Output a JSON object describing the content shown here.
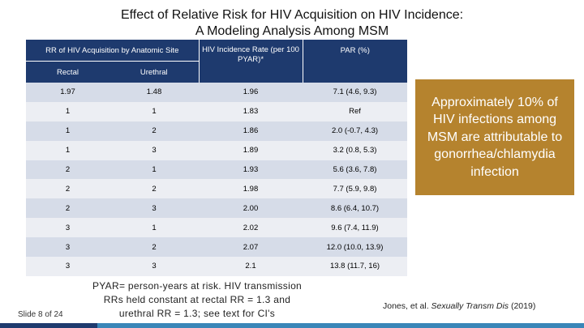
{
  "title": {
    "line1": "Effect of Relative Risk for HIV Acquisition on HIV Incidence:",
    "line2": "A Modeling Analysis Among MSM"
  },
  "table": {
    "group_header": "RR of HIV Acquisition by Anatomic Site",
    "col_rectal": "Rectal",
    "col_urethral": "Urethral",
    "col_incidence": "HIV Incidence Rate (per 100 PYAR)*",
    "col_par": "PAR (%)",
    "rows": [
      {
        "rectal": "1.97",
        "urethral": "1.48",
        "incidence": "1.96",
        "par": "7.1 (4.6, 9.3)"
      },
      {
        "rectal": "1",
        "urethral": "1",
        "incidence": "1.83",
        "par": "Ref"
      },
      {
        "rectal": "1",
        "urethral": "2",
        "incidence": "1.86",
        "par": "2.0 (-0.7, 4.3)"
      },
      {
        "rectal": "1",
        "urethral": "3",
        "incidence": "1.89",
        "par": "3.2 (0.8, 5.3)"
      },
      {
        "rectal": "2",
        "urethral": "1",
        "incidence": "1.93",
        "par": "5.6 (3.6, 7.8)"
      },
      {
        "rectal": "2",
        "urethral": "2",
        "incidence": "1.98",
        "par": "7.7 (5.9, 9.8)"
      },
      {
        "rectal": "2",
        "urethral": "3",
        "incidence": "2.00",
        "par": "8.6 (6.4, 10.7)"
      },
      {
        "rectal": "3",
        "urethral": "1",
        "incidence": "2.02",
        "par": "9.6 (7.4, 11.9)"
      },
      {
        "rectal": "3",
        "urethral": "2",
        "incidence": "2.07",
        "par": "12.0 (10.0, 13.9)"
      },
      {
        "rectal": "3",
        "urethral": "3",
        "incidence": "2.1",
        "par": "13.8 (11.7, 16)"
      }
    ]
  },
  "callout": "Approximately 10% of HIV infections among MSM are attributable to gonorrhea/chlamydia infection",
  "footnote": {
    "line1": "PYAR= person-years at risk. HIV transmission",
    "line2": "RRs held constant at rectal RR = 1.3 and",
    "line3": "urethral RR = 1.3; see text for CI's"
  },
  "slide_number": "Slide 8 of 24",
  "citation": {
    "authors": "Jones, et al. ",
    "journal": "Sexually Transm Dis",
    "year": " (2019)"
  },
  "colors": {
    "header_navy": "#1e3a6e",
    "row_dark": "#d6dce8",
    "row_light": "#eceef3",
    "callout_gold": "#b5832e",
    "footer_accent": "#3a86b8"
  }
}
